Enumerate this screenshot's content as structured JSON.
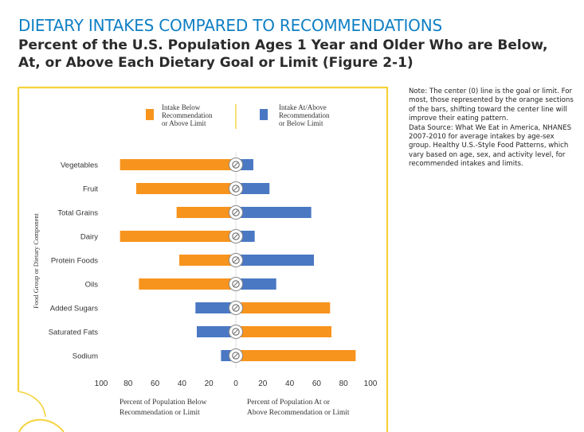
{
  "slide": {
    "title": "DIETARY INTAKES COMPARED TO RECOMMENDATIONS",
    "subtitle": "Percent of the U.S. Population Ages 1 Year and Older Who are Below, At, or Above Each Dietary Goal or Limit (Figure 2-1)"
  },
  "note": {
    "line1": "Note: The center (0) line is the goal or limit. For most, those represented by the orange sections of the bars, shifting toward the center line will improve their eating pattern.",
    "line2": "Data Source: What We Eat in America, NHANES 2007-2010 for average intakes by age-sex group. Healthy U.S.-Style Food Patterns, which vary based on age, sex, and activity level, for recommended intakes and limits."
  },
  "colors": {
    "below": "#f7941d",
    "above": "#4a78c3",
    "frame": "#f5d23a",
    "axis_text": "#333333"
  },
  "chart_data": {
    "type": "bar",
    "orientation": "horizontal-diverging",
    "ylabel": "Food Group or Dietary Component",
    "xlabel_left": "Percent of Population Below Recommendation or Limit",
    "xlabel_right": "Percent of Population At or Above Recommendation or Limit",
    "xlim": [
      -100,
      100
    ],
    "xticks": [
      -100,
      -80,
      -60,
      -40,
      -20,
      0,
      20,
      40,
      60,
      80,
      100
    ],
    "xtick_labels": [
      "100",
      "80",
      "60",
      "40",
      "20",
      "0",
      "20",
      "40",
      "60",
      "80",
      "100"
    ],
    "legend": {
      "placement": "top",
      "below_label": [
        "Intake Below",
        "Recommendation",
        "or Above Limit"
      ],
      "above_label": [
        "Intake At/Above",
        "Recommendation",
        "or Below Limit"
      ]
    },
    "categories": [
      "Vegetables",
      "Fruit",
      "Total Grains",
      "Dairy",
      "Protein Foods",
      "Oils",
      "Added Sugars",
      "Saturated Fats",
      "Sodium"
    ],
    "icons": [
      "broccoli-icon",
      "fruit-bowl-icon",
      "bread-icon",
      "milk-carton-icon",
      "drumstick-icon",
      "oil-bottle-icon",
      "candy-icon",
      "burger-icon",
      "salt-shaker-icon"
    ],
    "series": [
      {
        "key": "left",
        "values": [
          86,
          74,
          44,
          86,
          42,
          72,
          30,
          29,
          11
        ],
        "colors": [
          "below",
          "below",
          "below",
          "below",
          "below",
          "below",
          "above",
          "above",
          "above"
        ]
      },
      {
        "key": "right",
        "values": [
          13,
          25,
          56,
          14,
          58,
          30,
          70,
          71,
          89
        ],
        "colors": [
          "above",
          "above",
          "above",
          "above",
          "above",
          "above",
          "below",
          "below",
          "below"
        ]
      }
    ]
  }
}
